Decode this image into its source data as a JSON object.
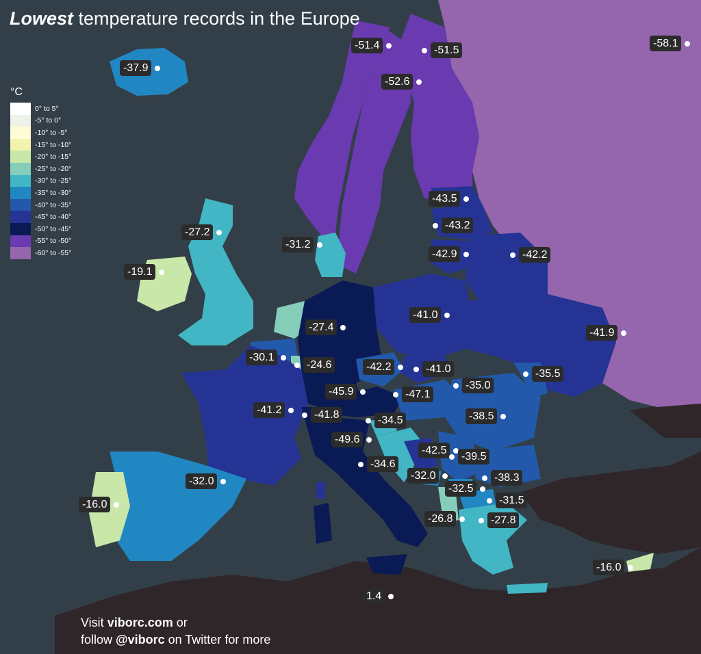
{
  "title": {
    "bold": "Lowest",
    "rest": "temperature records in the Europe"
  },
  "legend": {
    "unit": "°C",
    "items": [
      {
        "label": "0° to 5°",
        "color": "#ffffff"
      },
      {
        "label": "-5° to 0°",
        "color": "#eff2ea"
      },
      {
        "label": "-10° to -5°",
        "color": "#fdfcd5"
      },
      {
        "label": "-15° to -10°",
        "color": "#f2f4ad"
      },
      {
        "label": "-20° to -15°",
        "color": "#c9e7a8"
      },
      {
        "label": "-25° to -20°",
        "color": "#86ceba"
      },
      {
        "label": "-30° to -25°",
        "color": "#42b6c4"
      },
      {
        "label": "-35° to -30°",
        "color": "#2187c3"
      },
      {
        "label": "-40° to -35°",
        "color": "#2359aa"
      },
      {
        "label": "-45° to -40°",
        "color": "#253494"
      },
      {
        "label": "-50° to -45°",
        "color": "#091a55"
      },
      {
        "label": "-55° to -50°",
        "color": "#6a3ab0"
      },
      {
        "label": "-60° to -55°",
        "color": "#9565ae"
      }
    ]
  },
  "records": [
    {
      "name": "iceland",
      "value": "-37.9"
    },
    {
      "name": "norway",
      "value": "-51.4"
    },
    {
      "name": "finland",
      "value": "-51.5"
    },
    {
      "name": "sweden",
      "value": "-52.6"
    },
    {
      "name": "russia",
      "value": "-58.1"
    },
    {
      "name": "estonia",
      "value": "-43.5"
    },
    {
      "name": "latvia",
      "value": "-43.2"
    },
    {
      "name": "lithuania",
      "value": "-42.9"
    },
    {
      "name": "belarus",
      "value": "-42.2"
    },
    {
      "name": "scotland",
      "value": "-27.2"
    },
    {
      "name": "denmark",
      "value": "-31.2"
    },
    {
      "name": "ireland",
      "value": "-19.1"
    },
    {
      "name": "poland",
      "value": "-41.0"
    },
    {
      "name": "netherlands",
      "value": "-27.4"
    },
    {
      "name": "ukraine",
      "value": "-41.9"
    },
    {
      "name": "belgium",
      "value": "-30.1"
    },
    {
      "name": "luxembourg",
      "value": "-24.6"
    },
    {
      "name": "czechia",
      "value": "-42.2"
    },
    {
      "name": "slovakia",
      "value": "-41.0"
    },
    {
      "name": "moldova",
      "value": "-35.5"
    },
    {
      "name": "hungary",
      "value": "-35.0"
    },
    {
      "name": "germany",
      "value": "-45.9"
    },
    {
      "name": "austria",
      "value": "-47.1"
    },
    {
      "name": "romania",
      "value": "-38.5"
    },
    {
      "name": "france",
      "value": "-41.2"
    },
    {
      "name": "switzerland",
      "value": "-41.8"
    },
    {
      "name": "slovenia",
      "value": "-34.5"
    },
    {
      "name": "italy",
      "value": "-49.6"
    },
    {
      "name": "bosnia",
      "value": "-42.5"
    },
    {
      "name": "croatia",
      "value": "-34.6"
    },
    {
      "name": "serbia",
      "value": "-39.5"
    },
    {
      "name": "montenegro",
      "value": "-32.0"
    },
    {
      "name": "bulgaria",
      "value": "-38.3"
    },
    {
      "name": "andorra",
      "value": "-32.0"
    },
    {
      "name": "kosovo",
      "value": "-32.5"
    },
    {
      "name": "north-macedonia",
      "value": "-31.5"
    },
    {
      "name": "portugal",
      "value": "-16.0"
    },
    {
      "name": "albania",
      "value": "-26.8"
    },
    {
      "name": "greece",
      "value": "-27.8"
    },
    {
      "name": "cyprus",
      "value": "-16.0"
    },
    {
      "name": "malta",
      "value": "1.4"
    }
  ],
  "footer": {
    "line1_pre": "Visit ",
    "site": "viborc.com",
    "line1_post": " or",
    "line2_pre": "follow ",
    "handle": "@viborc",
    "line2_post": " on Twitter for more"
  }
}
